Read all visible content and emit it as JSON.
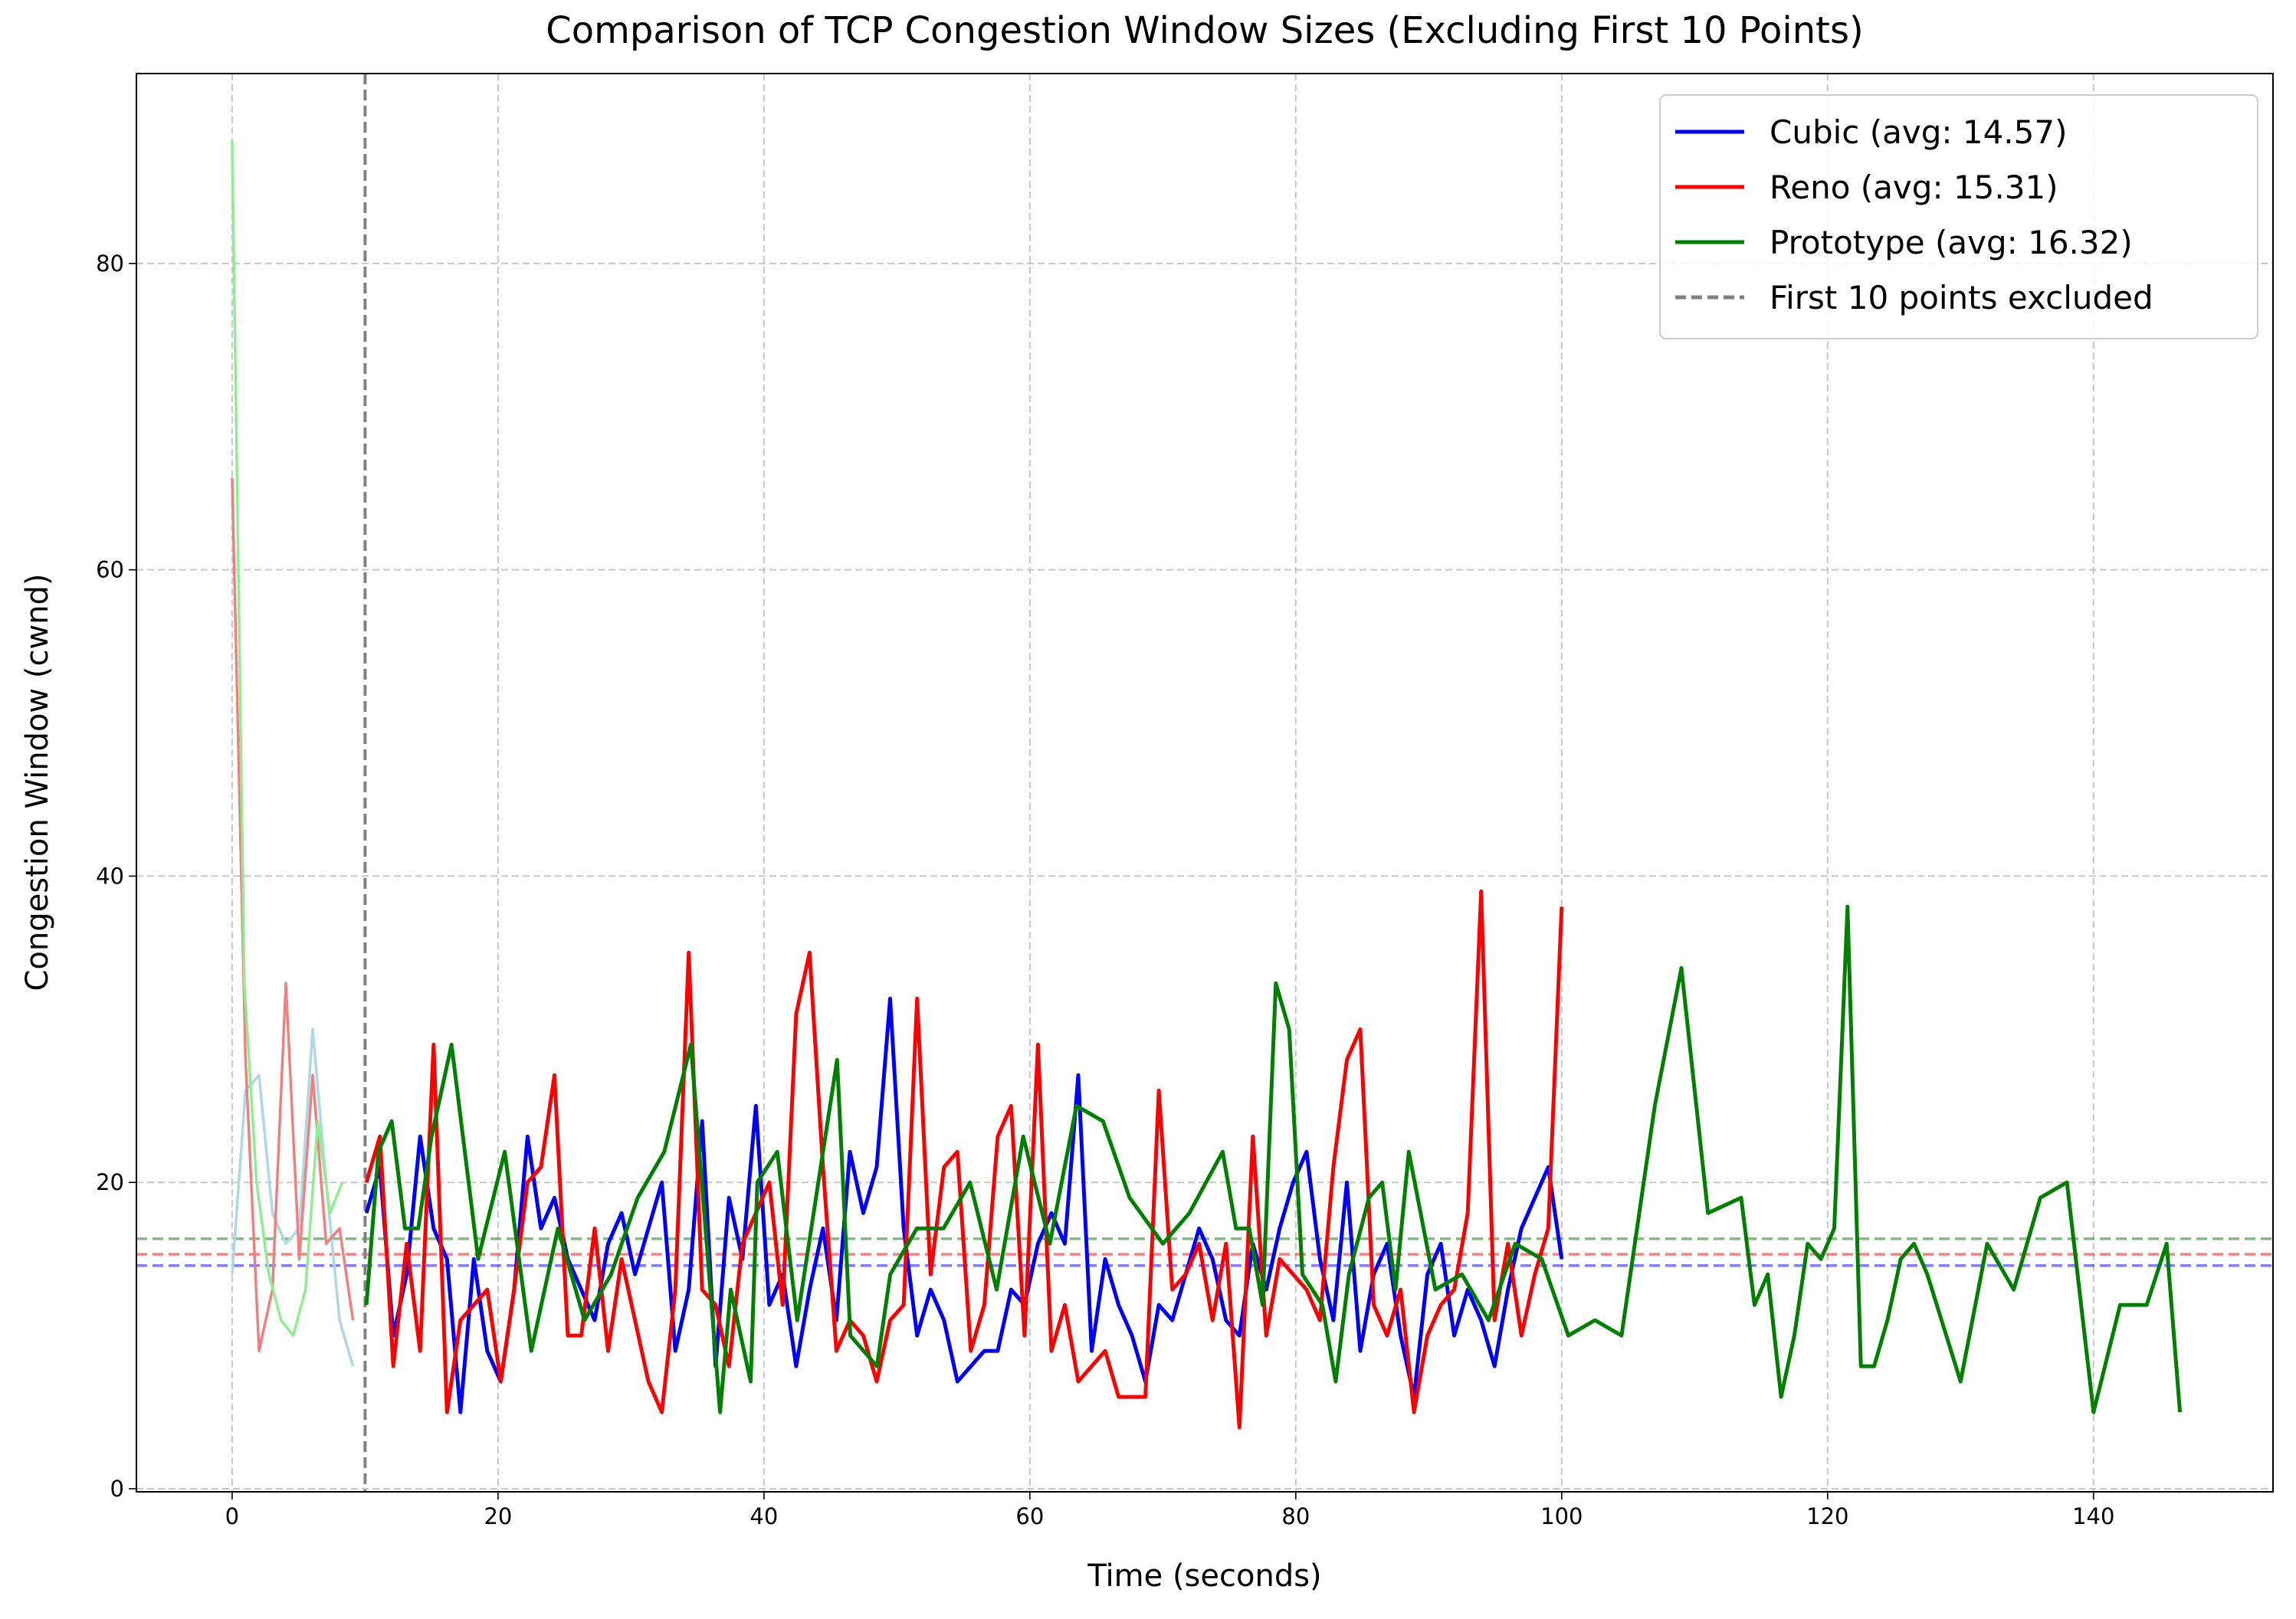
{
  "chart_data": {
    "type": "line",
    "title": "Comparison of TCP Congestion Window Sizes (Excluding First 10 Points)",
    "xlabel": "Time (seconds)",
    "ylabel": "Congestion Window (cwnd)",
    "xlim": [
      -7.2,
      153.5
    ],
    "ylim": [
      -0.2,
      92.4
    ],
    "xticks": [
      0,
      20,
      40,
      60,
      80,
      100,
      120,
      140
    ],
    "yticks": [
      0,
      20,
      40,
      60,
      80
    ],
    "grid": true,
    "legend": "upper right",
    "vline": {
      "x": 10,
      "label": "First 10 points excluded",
      "color": "#808080"
    },
    "series": [
      {
        "color": "#add8e6",
        "x": [
          0,
          1.01,
          2.02,
          3.03,
          4.04,
          5.05,
          6.06,
          7.07,
          8.08,
          9.09
        ],
        "values": [
          14,
          26,
          27,
          18,
          16,
          17,
          30,
          20,
          11,
          8
        ]
      },
      {
        "color": "#f08080",
        "x": [
          0,
          1.01,
          2.02,
          3.03,
          4.04,
          5.05,
          6.06,
          7.07,
          8.08,
          9.09
        ],
        "values": [
          66,
          28,
          9,
          13,
          33,
          15,
          27,
          16,
          17,
          11
        ]
      },
      {
        "color": "#90ee90",
        "x": [
          0,
          0.92,
          1.84,
          2.76,
          3.68,
          4.6,
          5.52,
          6.44,
          7.36,
          8.28
        ],
        "values": [
          88,
          33,
          20,
          14,
          11,
          10,
          13,
          24,
          18,
          20
        ]
      },
      {
        "name": "Cubic (avg: 14.57)",
        "color": "#0000ff",
        "avg": 14.57,
        "x": [
          10.1,
          11.11,
          12.12,
          13.13,
          14.14,
          15.15,
          16.16,
          17.17,
          18.18,
          19.19,
          20.2,
          21.21,
          22.22,
          23.23,
          24.24,
          25.25,
          26.26,
          27.27,
          28.28,
          29.29,
          30.3,
          31.31,
          32.32,
          33.33,
          34.34,
          35.35,
          36.36,
          37.37,
          38.38,
          39.39,
          40.4,
          41.41,
          42.42,
          43.43,
          44.44,
          45.45,
          46.46,
          47.47,
          48.48,
          49.49,
          50.51,
          51.52,
          52.53,
          53.54,
          54.55,
          55.56,
          56.57,
          57.58,
          58.59,
          59.6,
          60.61,
          61.62,
          62.63,
          63.64,
          64.65,
          65.66,
          66.67,
          67.68,
          68.69,
          69.7,
          70.71,
          71.72,
          72.73,
          73.74,
          74.75,
          75.76,
          76.77,
          77.78,
          78.79,
          79.8,
          80.81,
          81.82,
          82.83,
          83.84,
          84.85,
          85.86,
          86.87,
          87.88,
          88.89,
          89.9,
          90.91,
          91.92,
          92.93,
          93.94,
          94.95,
          95.96,
          96.97,
          97.98,
          98.99,
          100
        ],
        "values": [
          18,
          21,
          10,
          14,
          23,
          17,
          15,
          5,
          15,
          9,
          7,
          13,
          23,
          17,
          19,
          15,
          13,
          11,
          16,
          18,
          14,
          17,
          20,
          9,
          13,
          24,
          8,
          19,
          15,
          25,
          12,
          14,
          8,
          13,
          17,
          11,
          22,
          18,
          21,
          32,
          17,
          10,
          13,
          11,
          7,
          8,
          9,
          9,
          13,
          12,
          16,
          18,
          16,
          27,
          9,
          15,
          12,
          10,
          7,
          12,
          11,
          14,
          17,
          15,
          11,
          10,
          16,
          13,
          17,
          20,
          22,
          15,
          11,
          20,
          9,
          14,
          16,
          10,
          6,
          14,
          16,
          10,
          13,
          11,
          8,
          13,
          17,
          19,
          21,
          15
        ]
      },
      {
        "name": "Reno (avg: 15.31)",
        "color": "#ff0000",
        "avg": 15.31,
        "x": [
          10.1,
          11.11,
          12.12,
          13.13,
          14.14,
          15.15,
          16.16,
          17.17,
          18.18,
          19.19,
          20.2,
          21.21,
          22.22,
          23.23,
          24.24,
          25.25,
          26.26,
          27.27,
          28.28,
          29.29,
          30.3,
          31.31,
          32.32,
          33.33,
          34.34,
          35.35,
          36.36,
          37.37,
          38.38,
          39.39,
          40.4,
          41.41,
          42.42,
          43.43,
          44.44,
          45.45,
          46.46,
          47.47,
          48.48,
          49.49,
          50.51,
          51.52,
          52.53,
          53.54,
          54.55,
          55.56,
          56.57,
          57.58,
          58.59,
          59.6,
          60.61,
          61.62,
          62.63,
          63.64,
          64.65,
          65.66,
          66.67,
          67.68,
          68.69,
          69.7,
          70.71,
          71.72,
          72.73,
          73.74,
          74.75,
          75.76,
          76.77,
          77.78,
          78.79,
          79.8,
          80.81,
          81.82,
          82.83,
          83.84,
          84.85,
          85.86,
          86.87,
          87.88,
          88.89,
          89.9,
          90.91,
          91.92,
          92.93,
          93.94,
          94.95,
          95.96,
          96.97,
          97.98,
          98.99,
          100
        ],
        "values": [
          20,
          23,
          8,
          16,
          9,
          29,
          5,
          11,
          12,
          13,
          7,
          13,
          20,
          21,
          27,
          10,
          10,
          17,
          9,
          15,
          11,
          7,
          5,
          13,
          35,
          13,
          12,
          8,
          16,
          18,
          20,
          12,
          31,
          35,
          21,
          9,
          11,
          10,
          7,
          11,
          12,
          32,
          14,
          21,
          22,
          9,
          12,
          23,
          25,
          10,
          29,
          9,
          12,
          7,
          8,
          9,
          6,
          6,
          6,
          26,
          13,
          14,
          16,
          11,
          16,
          4,
          23,
          10,
          15,
          14,
          13,
          11,
          21,
          28,
          30,
          12,
          10,
          13,
          5,
          10,
          12,
          13,
          18,
          39,
          11,
          16,
          10,
          14,
          17,
          38
        ]
      },
      {
        "name": "Prototype (avg: 16.32)",
        "color": "#008000",
        "avg": 16.32,
        "x": [
          10.1,
          11,
          12,
          13,
          14,
          15,
          16.5,
          18.5,
          20.5,
          22.5,
          24.5,
          26.5,
          28.5,
          30.5,
          32.5,
          34.5,
          36.7,
          37.5,
          39,
          39.5,
          41,
          42.5,
          45.5,
          46.5,
          48.5,
          49.5,
          51.5,
          53.5,
          55.5,
          57.5,
          59.5,
          61.5,
          63.5,
          65.5,
          67.5,
          70,
          72,
          74.5,
          75.5,
          76.5,
          77.5,
          78.5,
          79.5,
          80.5,
          82,
          83,
          84,
          85.5,
          86.5,
          87.5,
          88.5,
          90.5,
          92.5,
          94.5,
          96.5,
          98.5,
          100.5,
          102.5,
          104.5,
          107,
          109,
          111,
          113.5,
          114.5,
          115.5,
          116.5,
          117.5,
          118.5,
          119.5,
          120.5,
          121.5,
          122.5,
          123.5,
          124.5,
          125.5,
          126.5,
          127.5,
          130,
          132,
          134,
          136,
          138,
          140,
          142,
          144,
          145.5,
          146.5
        ],
        "values": [
          12,
          22,
          24,
          17,
          17,
          23,
          29,
          15,
          22,
          9,
          17,
          11,
          14,
          19,
          22,
          29,
          5,
          13,
          7,
          20,
          22,
          11,
          28,
          10,
          8,
          14,
          17,
          17,
          20,
          13,
          23,
          16,
          25,
          24,
          19,
          16,
          18,
          22,
          17,
          17,
          12,
          33,
          30,
          14,
          12,
          7,
          14,
          19,
          20,
          13,
          22,
          13,
          14,
          11,
          16,
          15,
          10,
          11,
          10,
          25,
          34,
          18,
          19,
          12,
          14,
          6,
          10,
          16,
          15,
          17,
          38,
          8,
          8,
          11,
          15,
          16,
          14,
          7,
          16,
          13,
          19,
          20,
          5,
          12,
          12,
          16,
          5
        ]
      }
    ]
  }
}
